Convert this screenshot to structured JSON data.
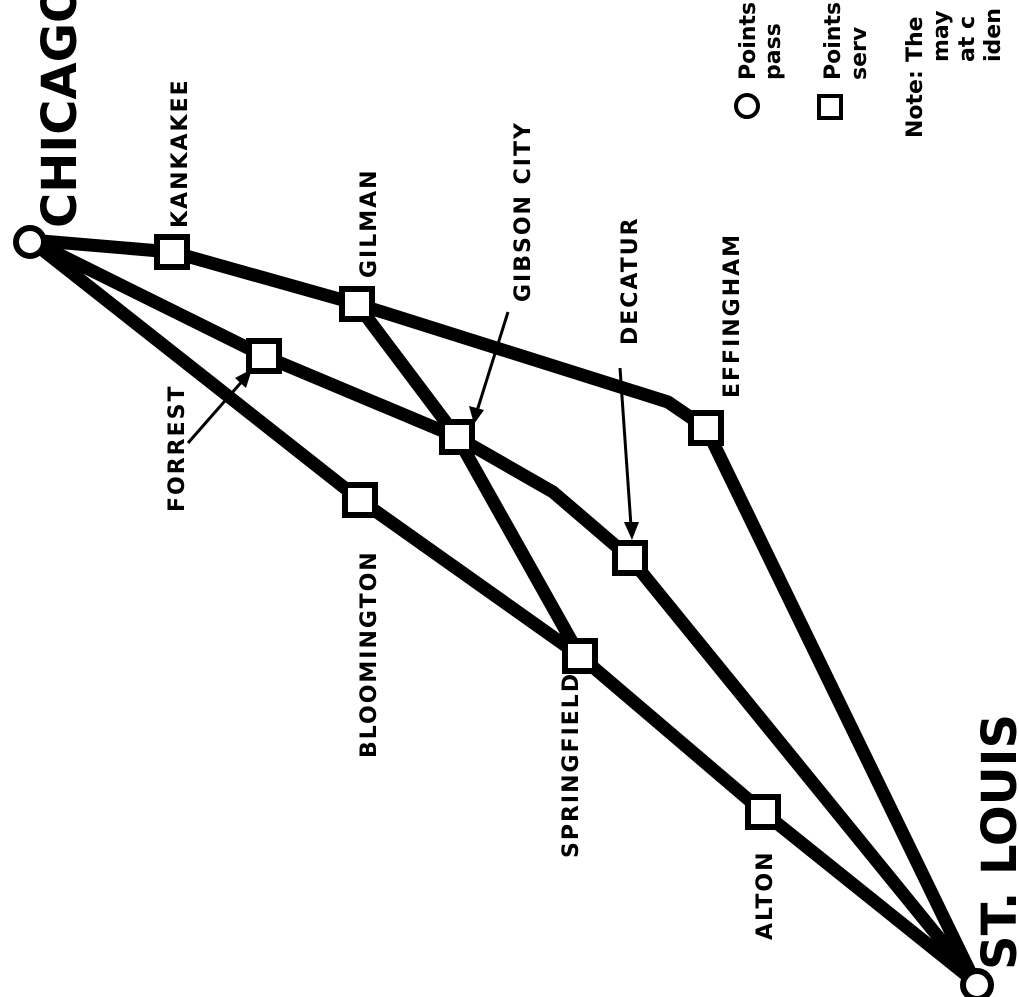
{
  "terminals": {
    "chicago": "CHICAGO",
    "st_louis": "ST. LOUIS"
  },
  "stations": {
    "kankakee": "KANKAKEE",
    "gilman": "GILMAN",
    "gibson_city": "GIBSON CITY",
    "decatur": "DECATUR",
    "effingham": "EFFINGHAM",
    "forrest": "FORREST",
    "bloomington": "BLOOMINGTON",
    "springfield": "SPRINGFIELD",
    "alton": "ALTON"
  },
  "legend": {
    "circle_line1": "Points",
    "circle_line2": "pass",
    "square_line1": "Points",
    "square_line2": "serv",
    "note_label": "Note:",
    "note_line1": "The",
    "note_line2": "may",
    "note_line3": "at c",
    "note_line4": "iden"
  },
  "colors": {
    "ink": "#000000",
    "paper": "#ffffff"
  },
  "icons": {
    "terminal": "circle-icon",
    "station": "square-icon"
  }
}
